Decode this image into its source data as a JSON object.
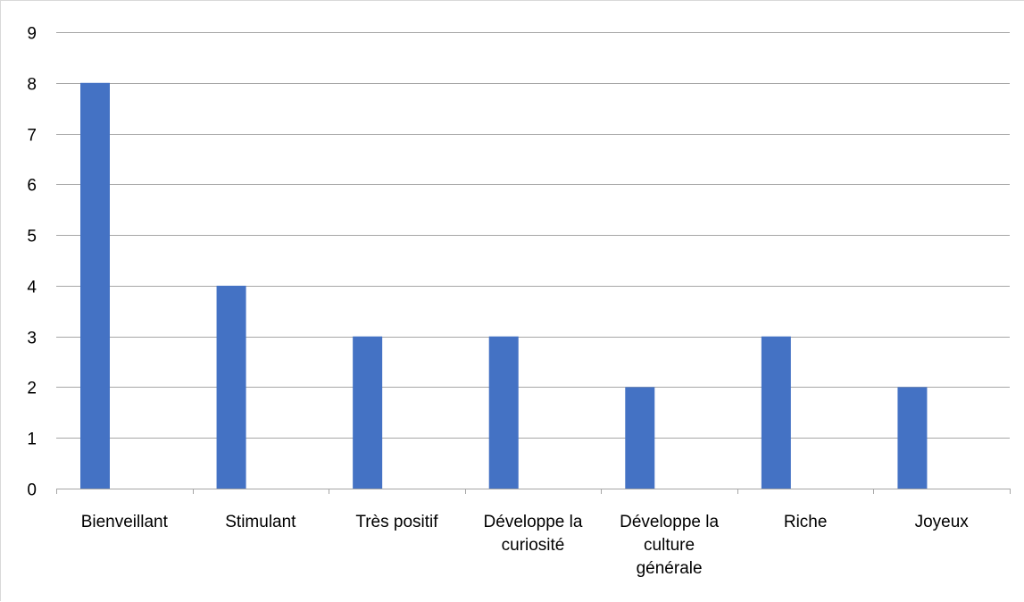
{
  "chart_data": {
    "type": "bar",
    "categories": [
      "Bienveillant",
      "Stimulant",
      "Très positif",
      "Développe la curiosité",
      "Développe la culture générale",
      "Riche",
      "Joyeux"
    ],
    "category_label_lines": [
      [
        "Bienveillant"
      ],
      [
        "Stimulant"
      ],
      [
        "Très positif"
      ],
      [
        "Développe la",
        "curiosité"
      ],
      [
        "Développe la",
        "culture",
        "générale"
      ],
      [
        "Riche"
      ],
      [
        "Joyeux"
      ]
    ],
    "values": [
      8,
      4,
      3,
      3,
      2,
      3,
      2
    ],
    "yticks": [
      "0",
      "1",
      "2",
      "3",
      "4",
      "5",
      "6",
      "7",
      "8",
      "9"
    ],
    "ylim": [
      0,
      9
    ],
    "grid": true,
    "legend": "none",
    "colors": {
      "bar": "#4472C4",
      "grid": "#a6a6a6",
      "axis": "#a6a6a6",
      "text": "#000000"
    }
  }
}
